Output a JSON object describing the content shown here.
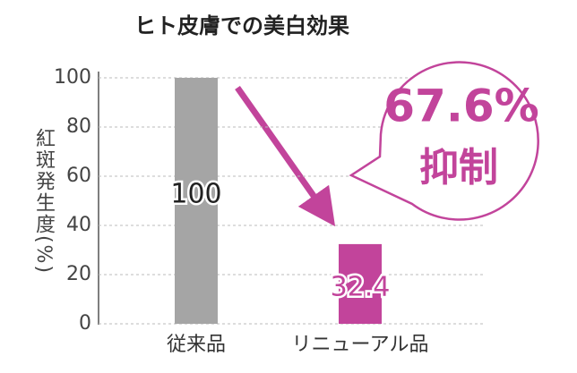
{
  "chart_data": {
    "type": "bar",
    "title": "ヒト皮膚での美白効果",
    "y_label": "紅斑発生度(%)",
    "categories": [
      "従来品",
      "リニューアル品"
    ],
    "values": [
      100,
      32.4
    ],
    "colors": [
      "#a5a5a5",
      "#c2449b"
    ],
    "value_label_colors": [
      "#222222",
      "#c2449b"
    ],
    "ylim": [
      0,
      100
    ],
    "yticks": [
      0,
      20,
      40,
      60,
      80,
      100
    ],
    "grid": true,
    "annotations": [
      "67.6%",
      "抑制"
    ],
    "annotation_color": "#c2449b"
  }
}
